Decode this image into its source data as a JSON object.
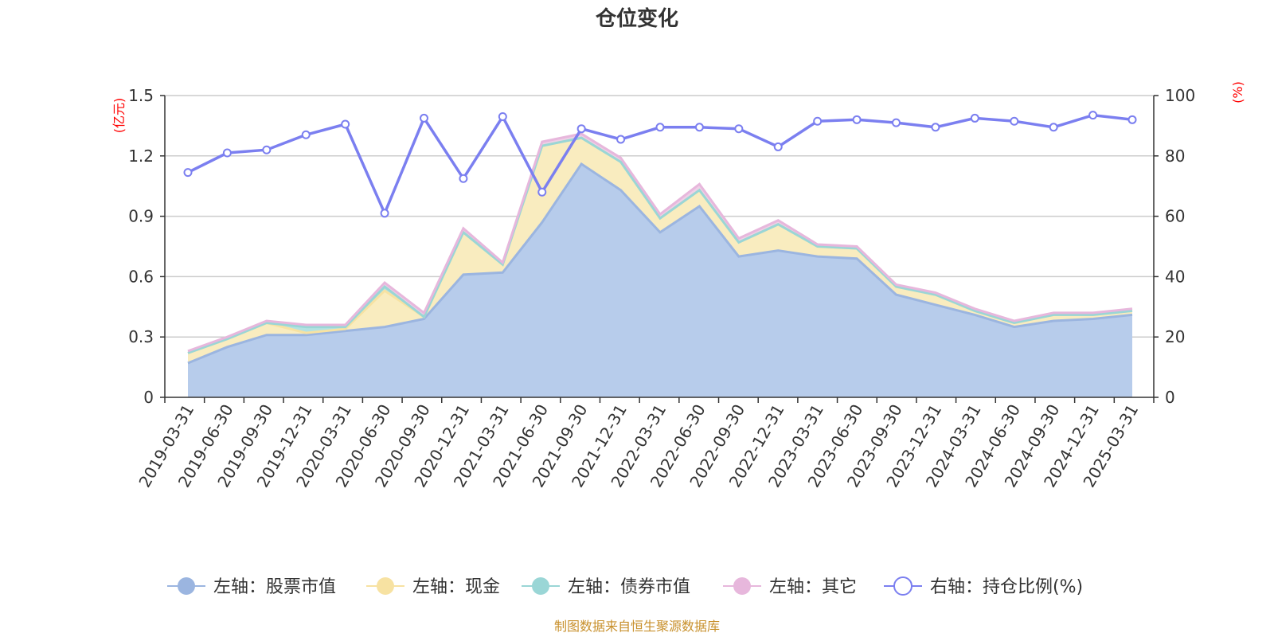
{
  "chart_data": {
    "type": "area",
    "title": "仓位变化",
    "left_axis_unit": "(亿元)",
    "right_axis_unit": "(%)",
    "left_ylim": [
      0,
      1.5
    ],
    "left_ticks": [
      "0",
      "0.3",
      "0.6",
      "0.9",
      "1.2",
      "1.5"
    ],
    "right_ylim": [
      0,
      100
    ],
    "right_ticks": [
      "0",
      "20",
      "40",
      "60",
      "80",
      "100"
    ],
    "grid": true,
    "legend_position": "bottom",
    "categories": [
      "2019-03-31",
      "2019-06-30",
      "2019-09-30",
      "2019-12-31",
      "2020-03-31",
      "2020-06-30",
      "2020-09-30",
      "2020-12-31",
      "2021-03-31",
      "2021-06-30",
      "2021-09-30",
      "2021-12-31",
      "2022-03-31",
      "2022-06-30",
      "2022-09-30",
      "2022-12-31",
      "2023-03-31",
      "2023-06-30",
      "2023-09-30",
      "2023-12-31",
      "2024-03-31",
      "2024-06-30",
      "2024-09-30",
      "2024-12-31",
      "2025-03-31"
    ],
    "series": [
      {
        "name": "左轴：股票市值",
        "axis": "left",
        "stack": "total",
        "color": "#9bb5e0",
        "fill": "#b7cceb",
        "values": [
          0.17,
          0.25,
          0.31,
          0.31,
          0.33,
          0.35,
          0.39,
          0.61,
          0.62,
          0.87,
          1.16,
          1.03,
          0.82,
          0.95,
          0.7,
          0.73,
          0.7,
          0.69,
          0.51,
          0.46,
          0.41,
          0.35,
          0.38,
          0.39,
          0.41
        ]
      },
      {
        "name": "左轴：现金",
        "axis": "left",
        "stack": "total",
        "color": "#f7e2a2",
        "fill": "#f9ecbf",
        "values": [
          0.05,
          0.04,
          0.06,
          0.01,
          0.01,
          0.18,
          0.01,
          0.21,
          0.04,
          0.38,
          0.13,
          0.14,
          0.07,
          0.08,
          0.07,
          0.13,
          0.05,
          0.05,
          0.04,
          0.05,
          0.02,
          0.02,
          0.03,
          0.02,
          0.02
        ]
      },
      {
        "name": "左轴：债券市值",
        "axis": "left",
        "stack": "total",
        "color": "#9ad6d6",
        "fill": "#b3e2e2",
        "values": [
          0,
          0,
          0,
          0.03,
          0.01,
          0.02,
          0,
          0,
          0,
          0,
          0,
          0,
          0,
          0,
          0,
          0,
          0,
          0,
          0,
          0,
          0,
          0,
          0,
          0,
          0
        ]
      },
      {
        "name": "左轴：其它",
        "axis": "left",
        "stack": "total",
        "color": "#e7b7dc",
        "fill": "#eed0e7",
        "values": [
          0.01,
          0.01,
          0.01,
          0.01,
          0.01,
          0.02,
          0.02,
          0.02,
          0.01,
          0.02,
          0.02,
          0.02,
          0.02,
          0.03,
          0.02,
          0.02,
          0.01,
          0.01,
          0.01,
          0.01,
          0.01,
          0.01,
          0.01,
          0.01,
          0.01
        ]
      },
      {
        "name": "右轴：持仓比例(%)",
        "axis": "right",
        "type": "line",
        "color": "#7b7ff0",
        "values": [
          74.5,
          81.0,
          82.0,
          87.0,
          90.5,
          61.0,
          92.5,
          72.5,
          93.0,
          68.0,
          89.0,
          85.5,
          89.5,
          89.5,
          89.0,
          83.0,
          91.5,
          92.0,
          91.0,
          89.5,
          92.5,
          91.5,
          89.5,
          93.5,
          92.0
        ]
      }
    ]
  },
  "source_note": "制图数据来自恒生聚源数据库"
}
